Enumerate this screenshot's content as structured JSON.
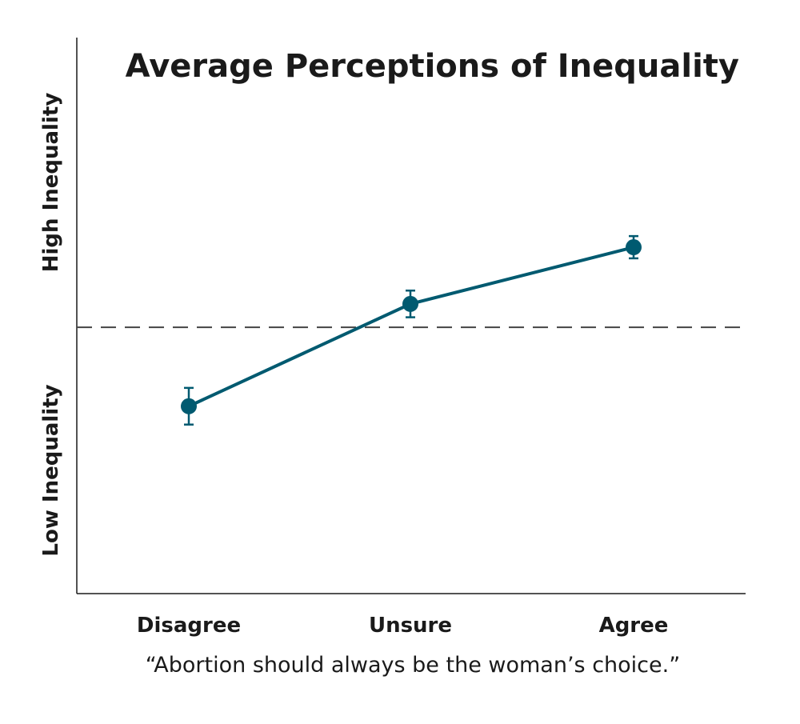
{
  "chart_data": {
    "type": "line",
    "title": "Average Perceptions of Inequality",
    "xlabel": "“Abortion should always be the woman’s choice.”",
    "y_high_label": "High Inequality",
    "y_low_label": "Low Inequality",
    "categories": [
      "Disagree",
      "Unsure",
      "Agree"
    ],
    "values": [
      0.337,
      0.521,
      0.623
    ],
    "error_low": [
      0.304,
      0.497,
      0.603
    ],
    "error_high": [
      0.37,
      0.545,
      0.643
    ],
    "reference_line": 0.479,
    "ylim": [
      0,
      1
    ],
    "grid": false,
    "color": "#005a70",
    "reference_color": "#444444"
  }
}
